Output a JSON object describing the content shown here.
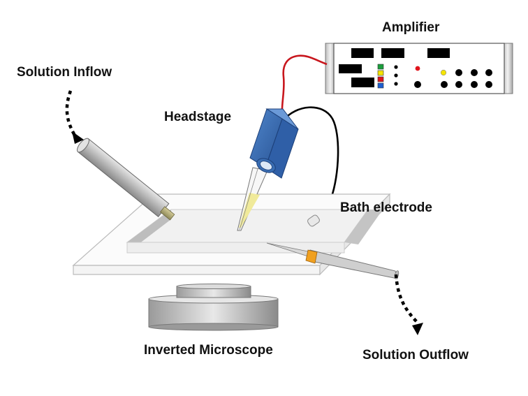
{
  "labels": {
    "amplifier": "Amplifier",
    "solution_inflow": "Solution Inflow",
    "headstage": "Headstage",
    "bath_electrode": "Bath electrode",
    "inverted_microscope": "Inverted Microscope",
    "solution_outflow": "Solution Outflow"
  },
  "colors": {
    "amplifier_wire": "#c8161d",
    "bath_wire": "#000000",
    "headstage": "#2f5fa7",
    "pipette_fill": "#f0ea9a",
    "outflow_band": "#f0a020",
    "indicator_green": "#1a9e3c",
    "indicator_yellow": "#f5e400",
    "indicator_red": "#e0141c",
    "indicator_blue": "#1e5fd0",
    "led_red": "#e0141c",
    "led_yellow": "#f5e400"
  }
}
